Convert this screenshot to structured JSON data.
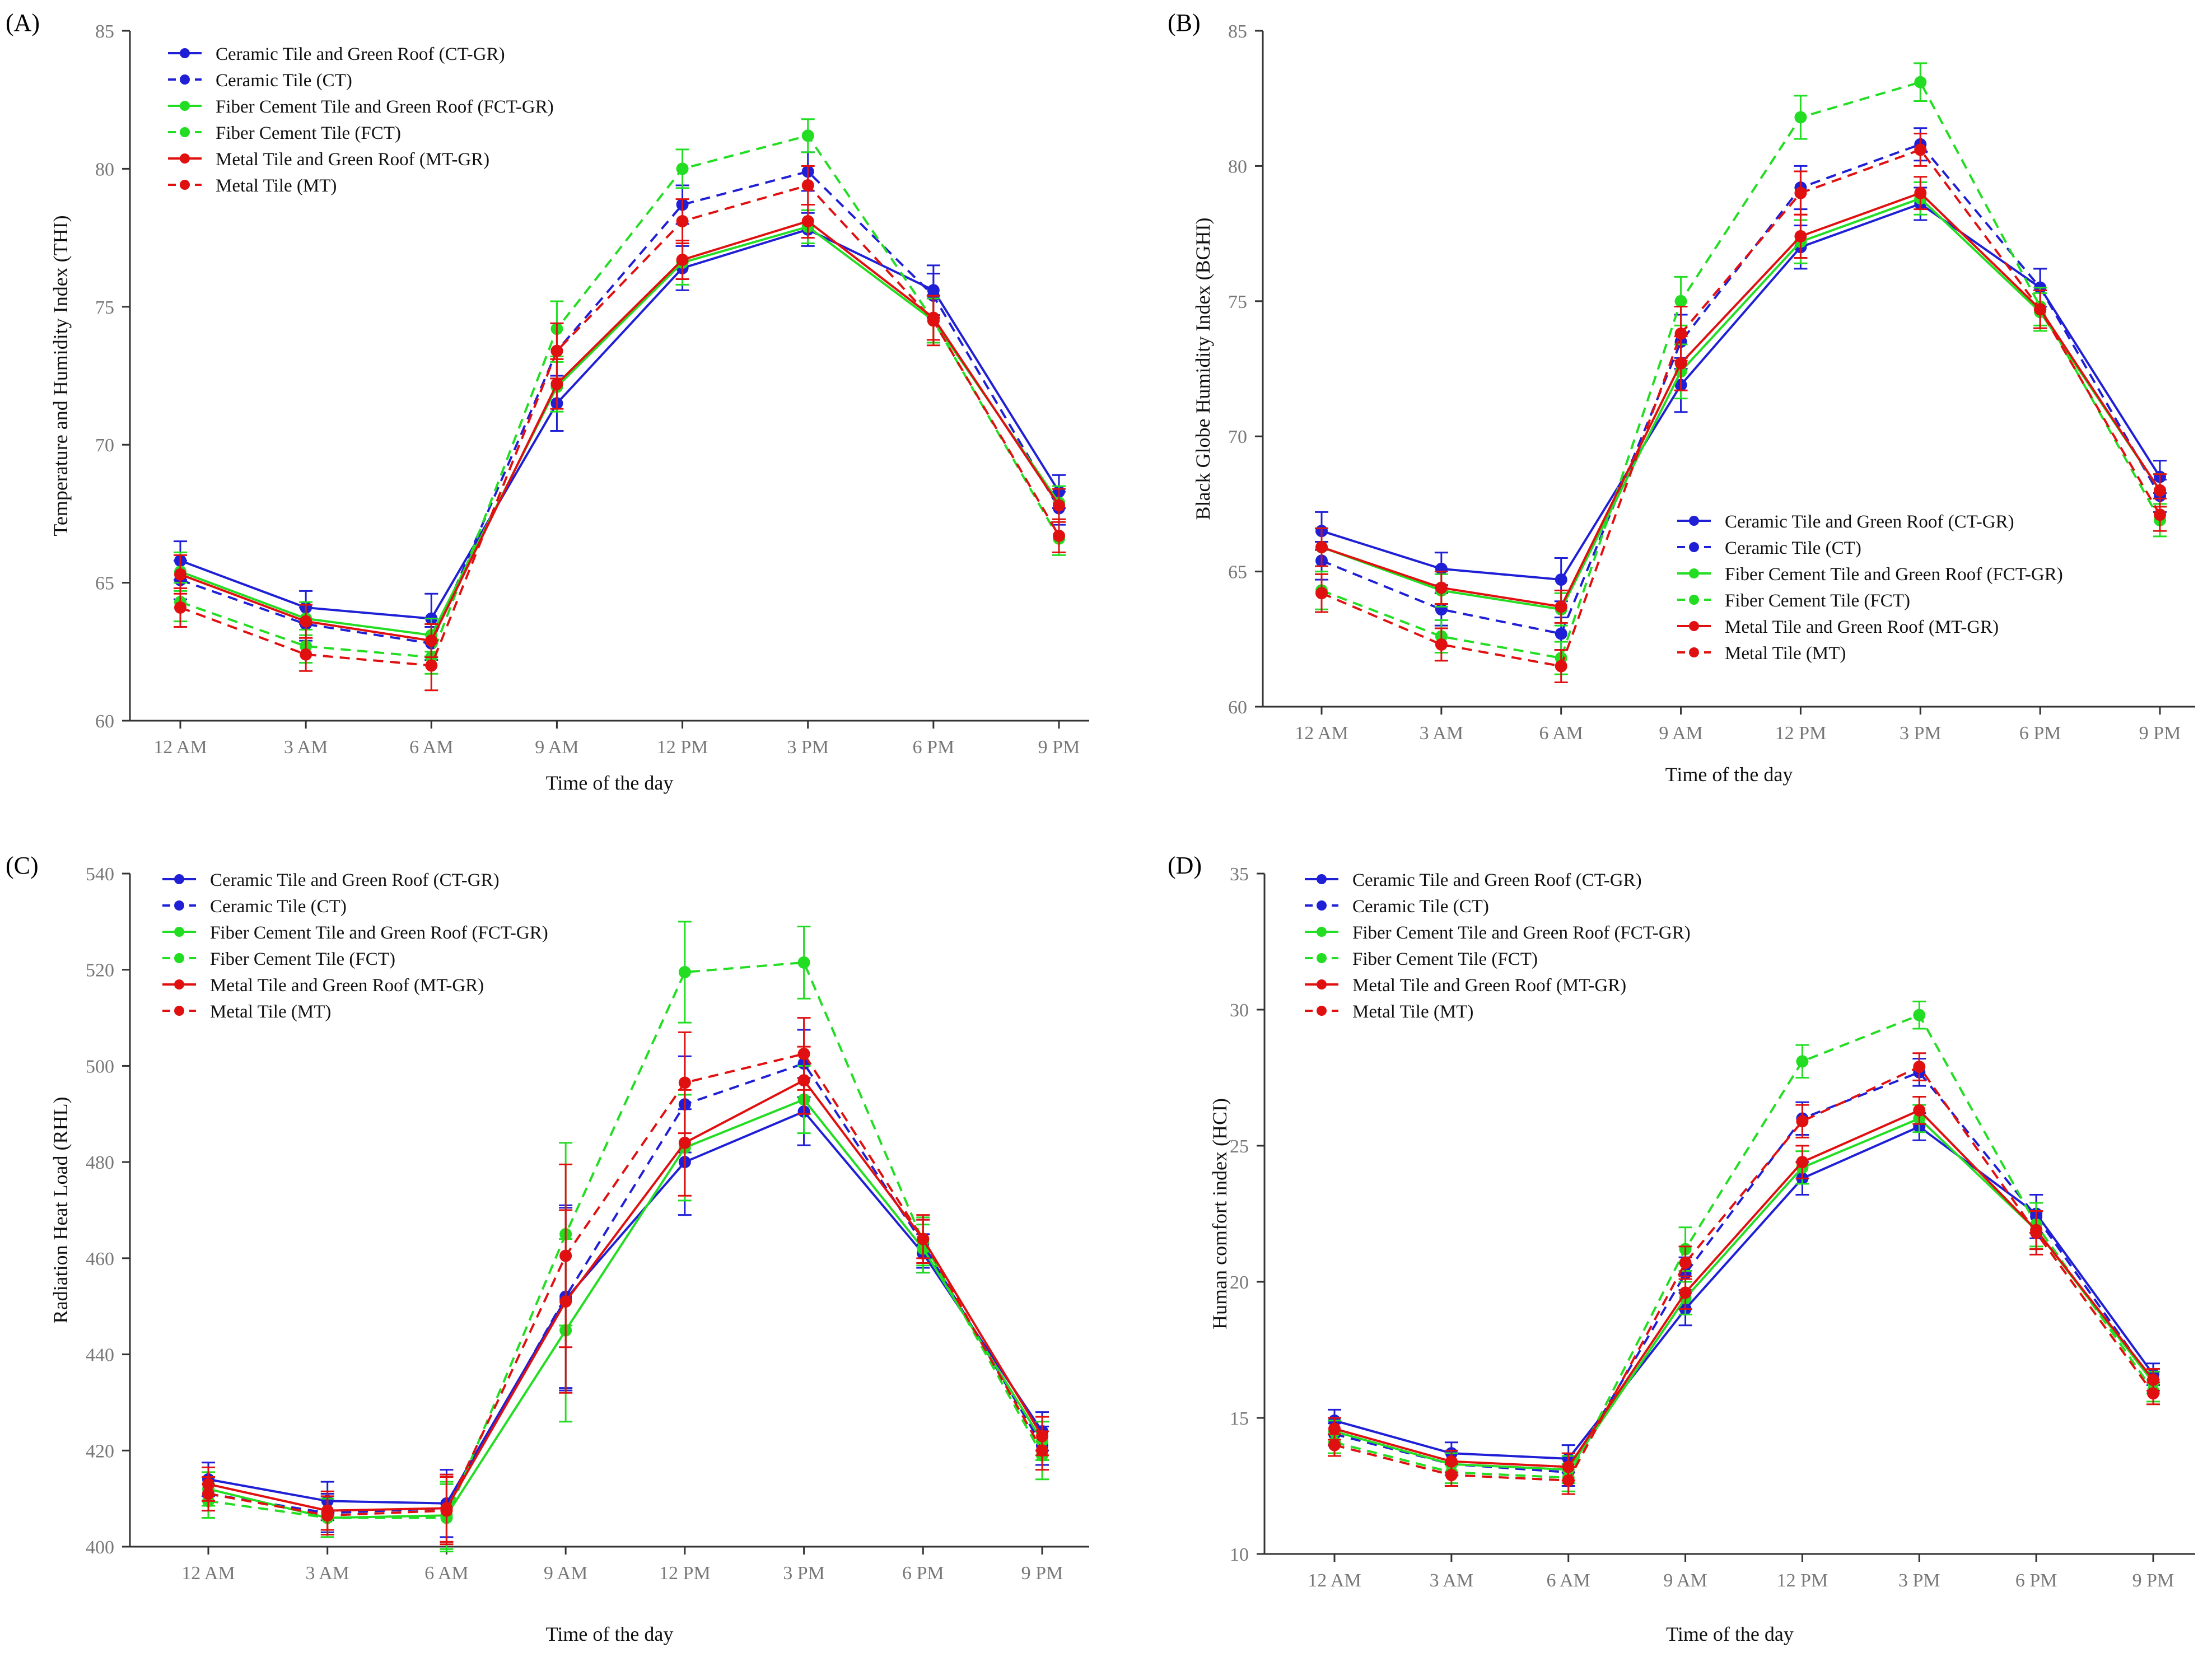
{
  "legend_labels": [
    "Ceramic Tile and Green Roof (CT-GR)",
    "Ceramic Tile (CT)",
    "Fiber Cement Tile and Green Roof (FCT-GR)",
    "Fiber Cement Tile (FCT)",
    "Metal Tile and Green Roof (MT-GR)",
    "Metal Tile (MT)"
  ],
  "series_style": [
    {
      "color": "#1f1fd6",
      "dash": false
    },
    {
      "color": "#1f1fd6",
      "dash": true
    },
    {
      "color": "#22dd22",
      "dash": false
    },
    {
      "color": "#22dd22",
      "dash": true
    },
    {
      "color": "#e01010",
      "dash": false
    },
    {
      "color": "#e01010",
      "dash": true
    }
  ],
  "chart_data": [
    {
      "panel": "(A)",
      "type": "line",
      "title": "",
      "xlabel": "Time of  the day",
      "ylabel": "Temperature and Humidity Index (THI)",
      "categories": [
        "12 AM",
        "3 AM",
        "6 AM",
        "9 AM",
        "12 PM",
        "3 PM",
        "6 PM",
        "9 PM"
      ],
      "ylim": [
        60,
        85
      ],
      "yticks": [
        60,
        65,
        70,
        75,
        80,
        85
      ],
      "legend_position": "top-left",
      "series": [
        {
          "name": "Ceramic Tile and Green Roof (CT-GR)",
          "values": [
            65.8,
            64.1,
            63.7,
            71.5,
            76.4,
            77.8,
            75.6,
            68.3
          ],
          "err": [
            0.7,
            0.6,
            0.9,
            1.0,
            0.8,
            0.6,
            0.9,
            0.6
          ]
        },
        {
          "name": "Ceramic Tile (CT)",
          "values": [
            65.1,
            63.5,
            62.8,
            73.4,
            78.7,
            79.9,
            75.4,
            67.7
          ],
          "err": [
            0.7,
            0.6,
            0.6,
            1.0,
            0.7,
            0.7,
            0.8,
            0.6
          ]
        },
        {
          "name": "Fiber Cement Tile and Green Roof (FCT-GR)",
          "values": [
            65.4,
            63.7,
            63.1,
            72.1,
            76.6,
            77.9,
            74.5,
            67.9
          ],
          "err": [
            0.7,
            0.6,
            0.6,
            0.9,
            0.8,
            0.6,
            0.8,
            0.6
          ]
        },
        {
          "name": "Fiber Cement Tile (FCT)",
          "values": [
            64.3,
            62.7,
            62.3,
            74.2,
            80.0,
            81.2,
            74.5,
            66.6
          ],
          "err": [
            0.7,
            0.6,
            0.6,
            1.0,
            0.7,
            0.6,
            0.8,
            0.6
          ]
        },
        {
          "name": "Metal Tile and Green Roof (MT-GR)",
          "values": [
            65.3,
            63.6,
            62.9,
            72.2,
            76.7,
            78.1,
            74.6,
            67.8
          ],
          "err": [
            0.7,
            0.6,
            0.6,
            0.9,
            0.7,
            0.6,
            0.8,
            0.6
          ]
        },
        {
          "name": "Metal Tile (MT)",
          "values": [
            64.1,
            62.4,
            62.0,
            73.4,
            78.1,
            79.4,
            74.5,
            66.7
          ],
          "err": [
            0.7,
            0.6,
            0.9,
            1.0,
            0.8,
            0.7,
            0.9,
            0.6
          ]
        }
      ]
    },
    {
      "panel": "(B)",
      "type": "line",
      "title": "",
      "xlabel": "Time of  the day",
      "ylabel": "Black Globe Humidity Index (BGHI)",
      "categories": [
        "12 AM",
        "3 AM",
        "6 AM",
        "9 AM",
        "12 PM",
        "3 PM",
        "6 PM",
        "9 PM"
      ],
      "ylim": [
        60,
        85
      ],
      "yticks": [
        60,
        65,
        70,
        75,
        80,
        85
      ],
      "legend_position": "center-right",
      "series": [
        {
          "name": "Ceramic Tile and Green Roof (CT-GR)",
          "values": [
            66.5,
            65.1,
            64.7,
            71.9,
            77.0,
            78.6,
            75.5,
            68.5
          ],
          "err": [
            0.7,
            0.6,
            0.8,
            1.0,
            0.8,
            0.6,
            0.7,
            0.6
          ]
        },
        {
          "name": "Ceramic Tile (CT)",
          "values": [
            65.4,
            63.6,
            62.7,
            73.5,
            79.2,
            80.8,
            75.5,
            67.8
          ],
          "err": [
            0.7,
            0.6,
            0.6,
            1.0,
            0.8,
            0.6,
            0.7,
            0.6
          ]
        },
        {
          "name": "Fiber Cement Tile and Green Roof (FCT-GR)",
          "values": [
            65.9,
            64.3,
            63.6,
            72.4,
            77.2,
            78.8,
            74.6,
            68.0
          ],
          "err": [
            0.7,
            0.6,
            0.6,
            1.0,
            0.8,
            0.6,
            0.7,
            0.6
          ]
        },
        {
          "name": "Fiber Cement Tile (FCT)",
          "values": [
            64.3,
            62.6,
            61.8,
            75.0,
            81.8,
            83.1,
            74.8,
            66.9
          ],
          "err": [
            0.7,
            0.6,
            0.6,
            0.9,
            0.8,
            0.7,
            0.7,
            0.6
          ]
        },
        {
          "name": "Metal Tile and Green Roof (MT-GR)",
          "values": [
            65.9,
            64.4,
            63.7,
            72.7,
            77.4,
            79.0,
            74.7,
            68.0
          ],
          "err": [
            0.7,
            0.6,
            0.6,
            1.0,
            0.8,
            0.6,
            0.7,
            0.6
          ]
        },
        {
          "name": "Metal Tile (MT)",
          "values": [
            64.2,
            62.3,
            61.5,
            73.8,
            79.0,
            80.6,
            74.7,
            67.1
          ],
          "err": [
            0.7,
            0.6,
            0.6,
            1.0,
            0.8,
            0.6,
            0.7,
            0.6
          ]
        }
      ]
    },
    {
      "panel": "(C)",
      "type": "line",
      "title": "",
      "xlabel": "Time of  the day",
      "ylabel": "Radiation Heat Load (RHL)",
      "categories": [
        "12 AM",
        "3 AM",
        "6 AM",
        "9 AM",
        "12 PM",
        "3 PM",
        "6 PM",
        "9 PM"
      ],
      "ylim": [
        400,
        540
      ],
      "yticks": [
        400,
        420,
        440,
        460,
        480,
        500,
        520,
        540
      ],
      "legend_position": "top-left",
      "series": [
        {
          "name": "Ceramic Tile and Green Roof (CT-GR)",
          "values": [
            414.0,
            409.5,
            409.0,
            451.5,
            480.0,
            490.5,
            461.0,
            424.0
          ],
          "err": [
            3.5,
            4.0,
            7.0,
            19.0,
            11.0,
            7.0,
            4.0,
            4.0
          ]
        },
        {
          "name": "Ceramic Tile (CT)",
          "values": [
            411.0,
            407.0,
            408.0,
            452.0,
            492.0,
            500.5,
            463.0,
            421.0
          ],
          "err": [
            3.5,
            4.0,
            7.0,
            19.0,
            10.0,
            7.0,
            5.0,
            4.0
          ]
        },
        {
          "name": "Fiber Cement Tile and Green Roof (FCT-GR)",
          "values": [
            412.0,
            406.0,
            406.5,
            445.0,
            483.0,
            493.0,
            462.0,
            422.0
          ],
          "err": [
            3.5,
            4.0,
            7.0,
            19.0,
            11.0,
            7.0,
            5.0,
            4.0
          ]
        },
        {
          "name": "Fiber Cement Tile (FCT)",
          "values": [
            409.5,
            406.0,
            406.0,
            465.0,
            519.5,
            521.5,
            463.5,
            419.0
          ],
          "err": [
            3.5,
            4.0,
            7.0,
            19.0,
            10.5,
            7.5,
            5.0,
            5.0
          ]
        },
        {
          "name": "Metal Tile and Green Roof (MT-GR)",
          "values": [
            413.0,
            407.5,
            408.0,
            451.0,
            484.0,
            497.0,
            464.0,
            423.0
          ],
          "err": [
            3.5,
            4.0,
            7.0,
            19.0,
            11.0,
            7.0,
            4.0,
            4.0
          ]
        },
        {
          "name": "Metal Tile (MT)",
          "values": [
            411.0,
            406.5,
            407.5,
            460.5,
            496.5,
            502.5,
            464.0,
            420.0
          ],
          "err": [
            3.5,
            4.0,
            7.0,
            19.0,
            10.5,
            7.5,
            5.0,
            4.0
          ]
        }
      ]
    },
    {
      "panel": "(D)",
      "type": "line",
      "title": "",
      "xlabel": "Time of  the day",
      "ylabel": "Human comfort index (HCI)",
      "categories": [
        "12 AM",
        "3 AM",
        "6 AM",
        "9 AM",
        "12 PM",
        "3 PM",
        "6 PM",
        "9 PM"
      ],
      "ylim": [
        10,
        35
      ],
      "yticks": [
        10,
        15,
        20,
        25,
        30,
        35
      ],
      "legend_position": "top-left",
      "series": [
        {
          "name": "Ceramic Tile and Green Roof (CT-GR)",
          "values": [
            14.9,
            13.7,
            13.5,
            19.0,
            23.8,
            25.7,
            22.5,
            16.6
          ],
          "err": [
            0.4,
            0.4,
            0.5,
            0.6,
            0.6,
            0.5,
            0.7,
            0.4
          ]
        },
        {
          "name": "Ceramic Tile (CT)",
          "values": [
            14.4,
            13.3,
            13.0,
            20.3,
            26.0,
            27.7,
            22.4,
            16.3
          ],
          "err": [
            0.4,
            0.4,
            0.5,
            0.6,
            0.6,
            0.5,
            0.8,
            0.4
          ]
        },
        {
          "name": "Fiber Cement Tile and Green Roof (FCT-GR)",
          "values": [
            14.5,
            13.3,
            13.1,
            19.4,
            24.2,
            26.0,
            21.9,
            16.3
          ],
          "err": [
            0.4,
            0.4,
            0.5,
            0.6,
            0.6,
            0.5,
            0.7,
            0.4
          ]
        },
        {
          "name": "Fiber Cement Tile (FCT)",
          "values": [
            14.1,
            13.0,
            12.8,
            21.2,
            28.1,
            29.8,
            22.1,
            16.0
          ],
          "err": [
            0.4,
            0.4,
            0.5,
            0.8,
            0.6,
            0.5,
            0.8,
            0.4
          ]
        },
        {
          "name": "Metal Tile and Green Roof (MT-GR)",
          "values": [
            14.6,
            13.4,
            13.2,
            19.6,
            24.4,
            26.3,
            21.9,
            16.4
          ],
          "err": [
            0.4,
            0.4,
            0.5,
            0.6,
            0.6,
            0.5,
            0.7,
            0.4
          ]
        },
        {
          "name": "Metal Tile (MT)",
          "values": [
            14.0,
            12.9,
            12.7,
            20.7,
            25.9,
            27.9,
            21.8,
            15.9
          ],
          "err": [
            0.4,
            0.4,
            0.5,
            0.6,
            0.6,
            0.5,
            0.8,
            0.4
          ]
        }
      ]
    }
  ]
}
